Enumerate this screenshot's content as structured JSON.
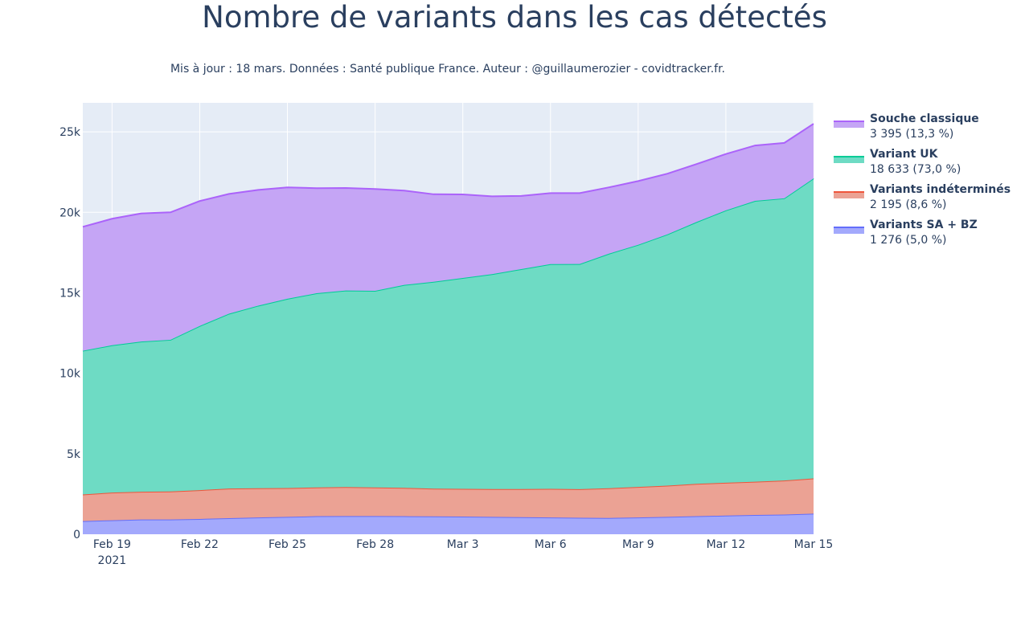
{
  "chart_data": {
    "type": "area",
    "stacked": true,
    "title": "Nombre de variants dans les cas détectés",
    "subtitle": "Mis à jour : 18 mars. Données : Santé publique France. Auteur : @guillaumerozier - covidtracker.fr.",
    "x": [
      "2021-02-18",
      "2021-02-19",
      "2021-02-20",
      "2021-02-21",
      "2021-02-22",
      "2021-02-23",
      "2021-02-24",
      "2021-02-25",
      "2021-02-26",
      "2021-02-27",
      "2021-02-28",
      "2021-03-01",
      "2021-03-02",
      "2021-03-03",
      "2021-03-04",
      "2021-03-05",
      "2021-03-06",
      "2021-03-07",
      "2021-03-08",
      "2021-03-09",
      "2021-03-10",
      "2021-03-11",
      "2021-03-12",
      "2021-03-13",
      "2021-03-14",
      "2021-03-15"
    ],
    "x_ticks": [
      {
        "date": "2021-02-19",
        "label": "Feb 19",
        "sublabel": "2021"
      },
      {
        "date": "2021-02-22",
        "label": "Feb 22",
        "sublabel": ""
      },
      {
        "date": "2021-02-25",
        "label": "Feb 25",
        "sublabel": ""
      },
      {
        "date": "2021-02-28",
        "label": "Feb 28",
        "sublabel": ""
      },
      {
        "date": "2021-03-03",
        "label": "Mar 3",
        "sublabel": ""
      },
      {
        "date": "2021-03-06",
        "label": "Mar 6",
        "sublabel": ""
      },
      {
        "date": "2021-03-09",
        "label": "Mar 9",
        "sublabel": ""
      },
      {
        "date": "2021-03-12",
        "label": "Mar 12",
        "sublabel": ""
      },
      {
        "date": "2021-03-15",
        "label": "Mar 15",
        "sublabel": ""
      }
    ],
    "y_ticks": [
      {
        "value": 0,
        "label": "0"
      },
      {
        "value": 5000,
        "label": "5k"
      },
      {
        "value": 10000,
        "label": "10k"
      },
      {
        "value": 15000,
        "label": "15k"
      },
      {
        "value": 20000,
        "label": "20k"
      },
      {
        "value": 25000,
        "label": "25k"
      }
    ],
    "ylim": [
      0,
      26800
    ],
    "grid": true,
    "legend_position": "right",
    "series": [
      {
        "name": "Variants SA + BZ",
        "legend_value": "1 276 (5,0 %)",
        "line_color": "#636efa",
        "fill_color": "#a3a9fc",
        "values": [
          820,
          870,
          920,
          920,
          950,
          1000,
          1040,
          1080,
          1120,
          1130,
          1130,
          1120,
          1110,
          1100,
          1080,
          1060,
          1040,
          1020,
          1010,
          1040,
          1080,
          1120,
          1160,
          1200,
          1220,
          1276
        ]
      },
      {
        "name": "Variants indéterminés",
        "legend_value": "2 195 (8,6 %)",
        "line_color": "#ef553b",
        "fill_color": "#eba294",
        "values": [
          1650,
          1720,
          1720,
          1740,
          1790,
          1840,
          1820,
          1790,
          1790,
          1800,
          1780,
          1760,
          1720,
          1720,
          1730,
          1750,
          1780,
          1780,
          1850,
          1900,
          1940,
          2010,
          2040,
          2060,
          2120,
          2195
        ]
      },
      {
        "name": "Variant UK",
        "legend_value": "18 633 (73,0 %)",
        "line_color": "#00cc96",
        "fill_color": "#6edbc4",
        "values": [
          8930,
          9150,
          9330,
          9420,
          10200,
          10860,
          11340,
          11760,
          12060,
          12210,
          12210,
          12610,
          12850,
          13100,
          13350,
          13660,
          13960,
          13990,
          14570,
          15040,
          15610,
          16270,
          16920,
          17450,
          17530,
          18633
        ]
      },
      {
        "name": "Souche classique",
        "legend_value": "3 395 (13,3 %)",
        "line_color": "#ab63fa",
        "fill_color": "#c5a5f5",
        "values": [
          7700,
          7860,
          7960,
          7920,
          7760,
          7440,
          7190,
          6920,
          6530,
          6370,
          6330,
          5860,
          5440,
          5190,
          4830,
          4550,
          4410,
          4400,
          4120,
          3960,
          3770,
          3600,
          3500,
          3440,
          3440,
          3395
        ]
      }
    ],
    "legend_order": [
      "Souche classique",
      "Variant UK",
      "Variants indéterminés",
      "Variants SA + BZ"
    ]
  }
}
